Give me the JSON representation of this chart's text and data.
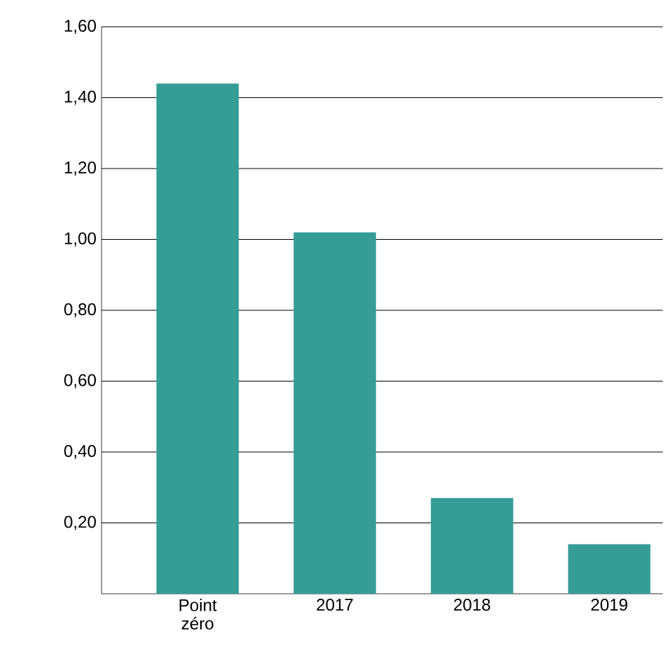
{
  "chart_data": {
    "type": "bar",
    "categories": [
      "Point zéro",
      "2017",
      "2018",
      "2019"
    ],
    "values": [
      1.44,
      1.02,
      0.27,
      0.14
    ],
    "color": "#369c96",
    "ylim": [
      0,
      1.6
    ],
    "yticks": [
      {
        "value": 0.2,
        "label": "0,20"
      },
      {
        "value": 0.4,
        "label": "0,40"
      },
      {
        "value": 0.6,
        "label": "0,60"
      },
      {
        "value": 0.8,
        "label": "0,80"
      },
      {
        "value": 1.0,
        "label": "1,00"
      },
      {
        "value": 1.2,
        "label": "1,20"
      },
      {
        "value": 1.4,
        "label": "1,40"
      },
      {
        "value": 1.6,
        "label": "1,60"
      }
    ],
    "grid": "y"
  }
}
